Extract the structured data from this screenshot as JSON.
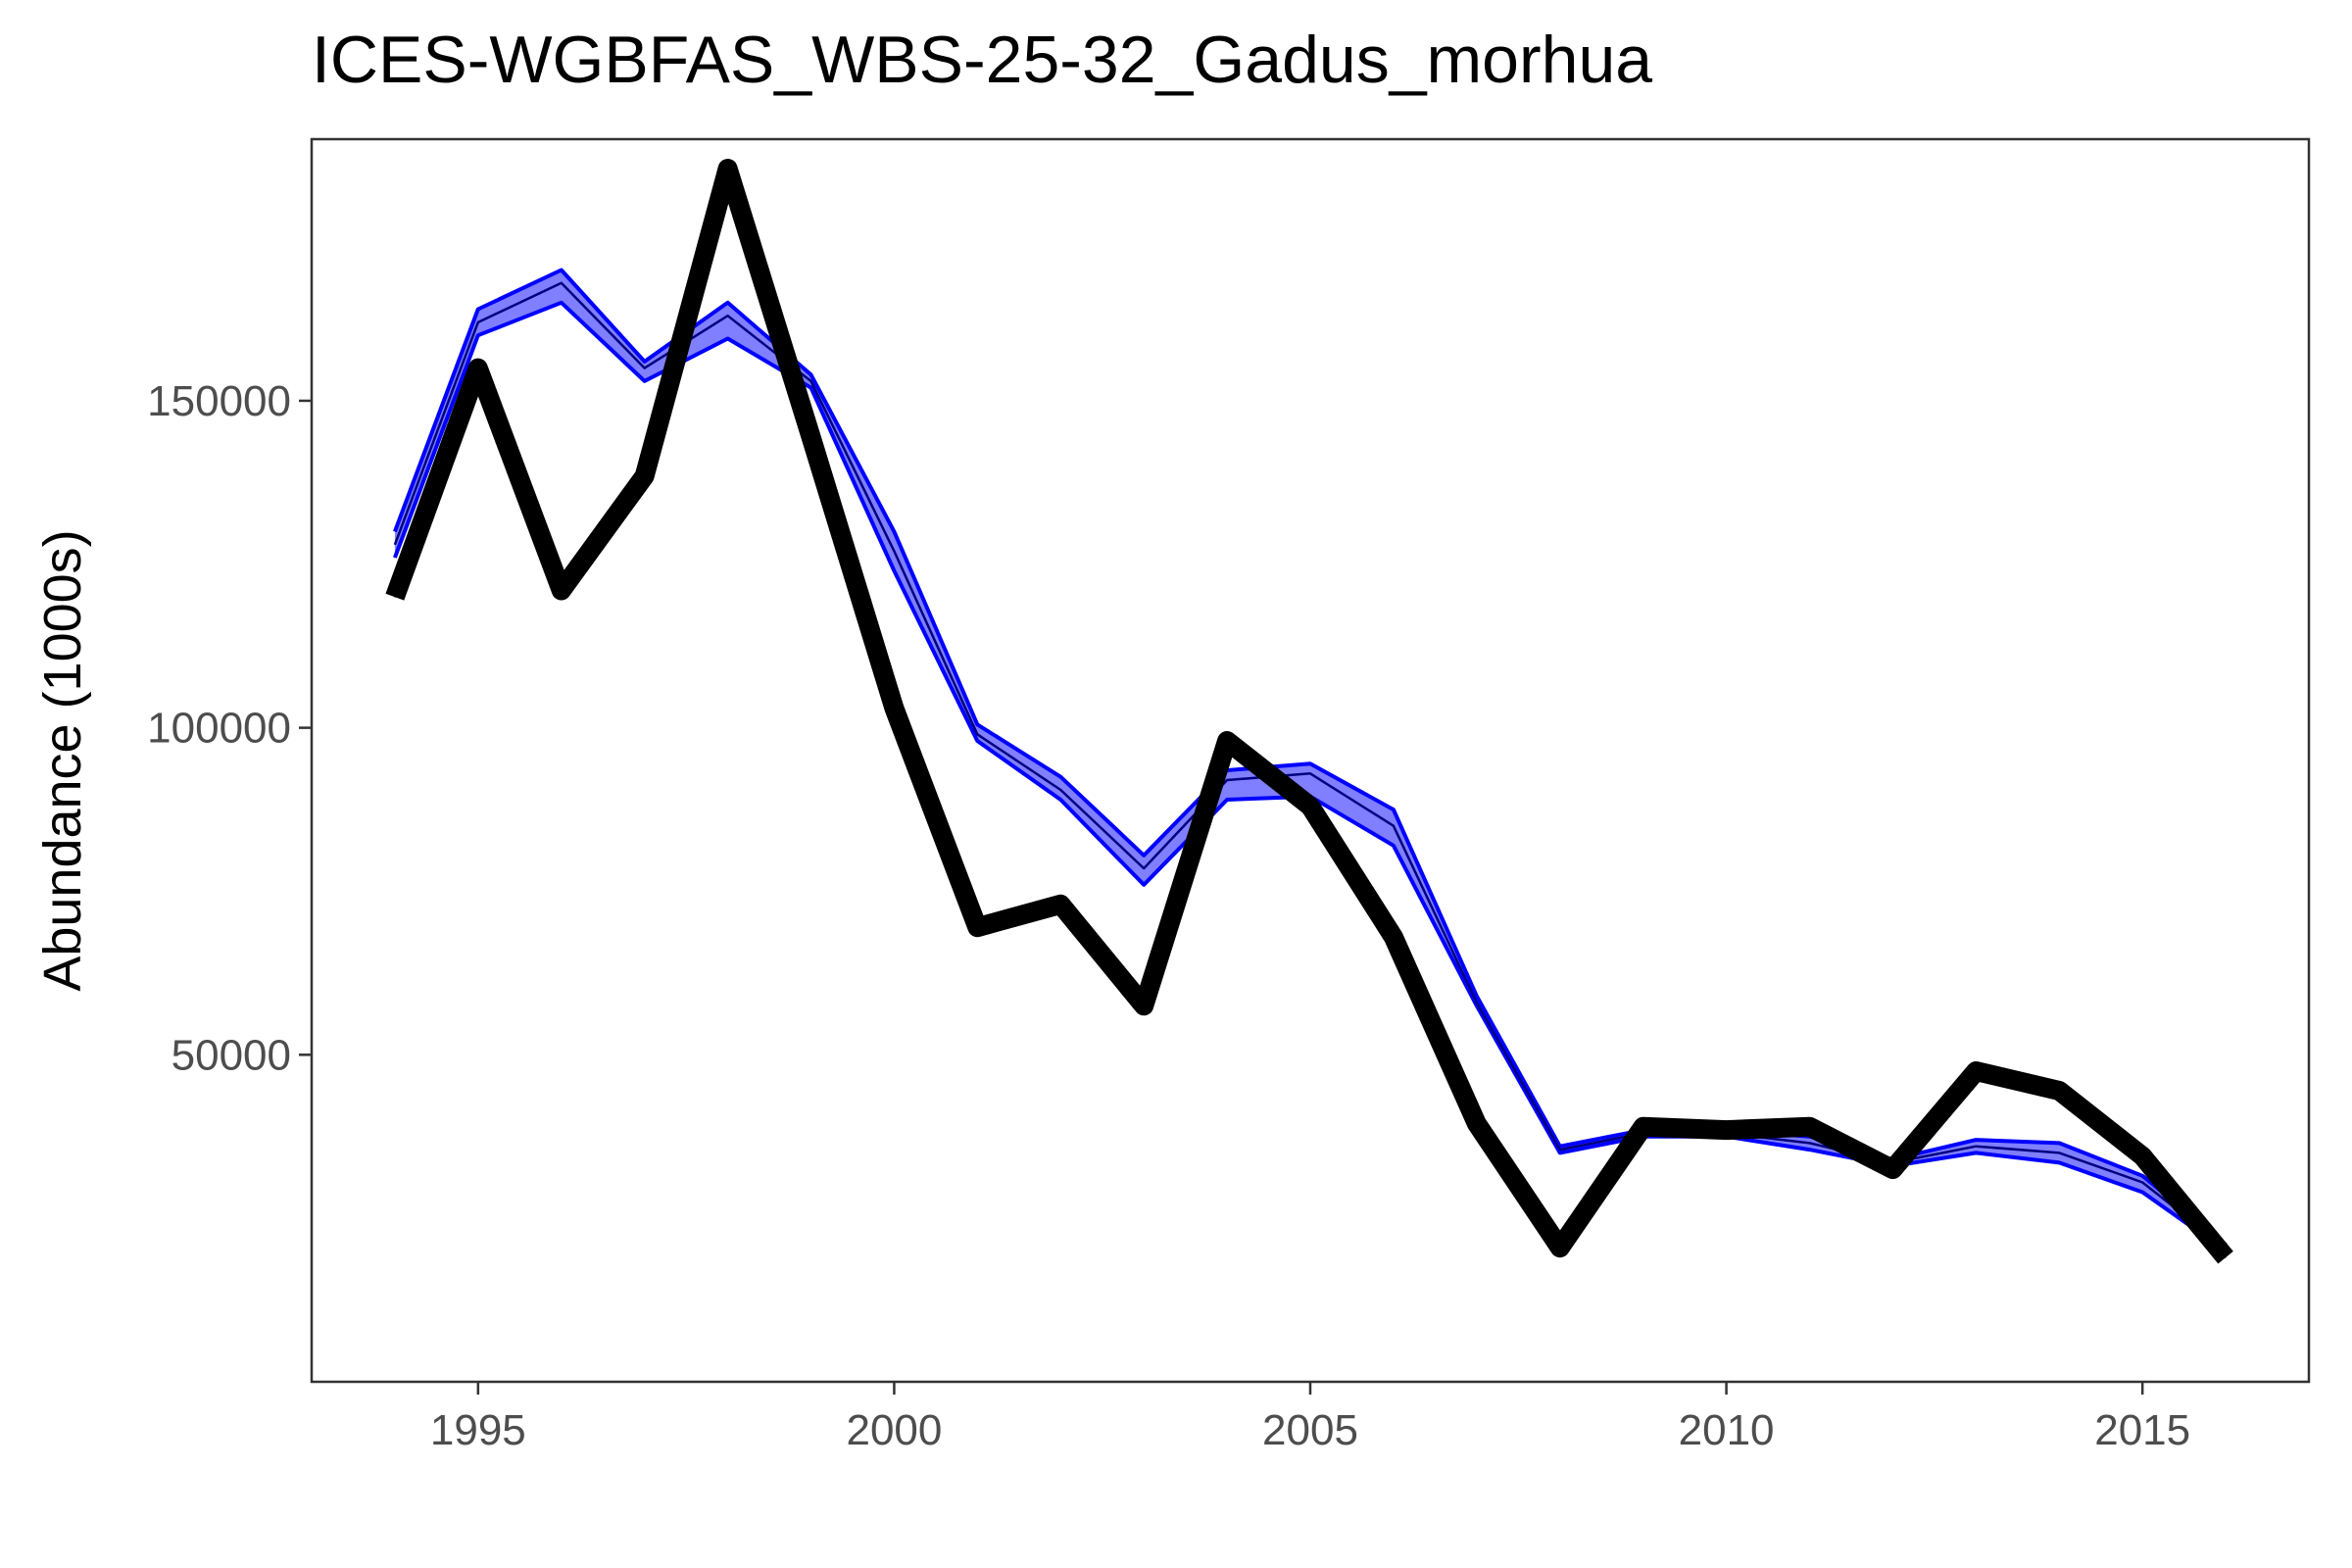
{
  "chart_data": {
    "type": "line",
    "title": "ICES-WGBFAS_WBS-25-32_Gadus_morhua",
    "xlabel": "",
    "ylabel": "Abundance (1000s)",
    "xlim": [
      1993,
      2017
    ],
    "ylim": [
      0,
      190000
    ],
    "x_ticks": [
      1995,
      2000,
      2005,
      2010,
      2015
    ],
    "y_ticks": [
      50000,
      100000,
      150000
    ],
    "grid": false,
    "legend": "none",
    "colors": {
      "band_fill": "#7f7fff",
      "band_edge": "#0000ff",
      "band_mid": "#000080",
      "observed": "#000000"
    },
    "x": [
      1994,
      1995,
      1996,
      1997,
      1998,
      1999,
      2000,
      2001,
      2002,
      2003,
      2004,
      2005,
      2006,
      2007,
      2008,
      2009,
      2010,
      2011,
      2012,
      2013,
      2014,
      2015,
      2016
    ],
    "series": [
      {
        "role": "band-upper",
        "values": [
          130000,
          164000,
          170000,
          156000,
          165000,
          154000,
          130000,
          100500,
          92500,
          80500,
          93500,
          94500,
          87500,
          59000,
          36000,
          38500,
          38500,
          37500,
          34000,
          37000,
          36500,
          31500,
          21000
        ]
      },
      {
        "role": "band-mid",
        "values": [
          128000,
          162000,
          168000,
          155000,
          163000,
          153000,
          127000,
          99000,
          90500,
          78500,
          92000,
          93000,
          85000,
          58000,
          35500,
          38000,
          38000,
          36500,
          33500,
          36000,
          35000,
          30500,
          20500
        ]
      },
      {
        "role": "band-lower",
        "values": [
          126000,
          160000,
          165000,
          153000,
          159500,
          152000,
          124000,
          98000,
          89000,
          76000,
          89000,
          89500,
          82000,
          57500,
          35000,
          37500,
          37500,
          35500,
          33000,
          35000,
          33500,
          29000,
          20000
        ]
      },
      {
        "role": "observed",
        "values": [
          120000,
          155000,
          121000,
          138500,
          185500,
          144500,
          103000,
          69500,
          73000,
          57500,
          98000,
          88000,
          68000,
          39500,
          20500,
          39000,
          38500,
          39000,
          32500,
          47500,
          44500,
          34500,
          19000
        ]
      }
    ]
  }
}
